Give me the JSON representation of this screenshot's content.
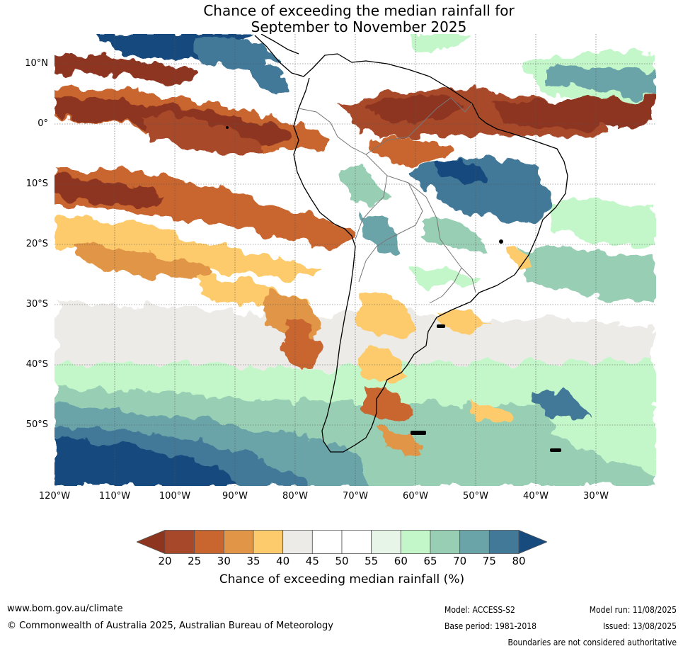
{
  "header": {
    "title_line1": "Chance of exceeding the median rainfall for",
    "title_line2": "September to November 2025"
  },
  "map": {
    "region": "South America",
    "lat_labels": [
      "10°N",
      "0°",
      "10°S",
      "20°S",
      "30°S",
      "40°S",
      "50°S"
    ],
    "lon_labels": [
      "120°W",
      "110°W",
      "100°W",
      "90°W",
      "80°W",
      "70°W",
      "60°W",
      "50°W",
      "40°W",
      "30°W"
    ]
  },
  "colorbar": {
    "title": "Chance of exceeding median rainfall (%)",
    "ticks": [
      "20",
      "25",
      "30",
      "35",
      "40",
      "45",
      "50",
      "55",
      "60",
      "65",
      "70",
      "75",
      "80"
    ],
    "colors": [
      "#8e3520",
      "#a8482a",
      "#c9652f",
      "#e09547",
      "#fdcb6c",
      "#ecebe8",
      "#ffffff",
      "#ffffff",
      "#e6f5e8",
      "#c3f7c9",
      "#98cfb4",
      "#6aa4a8",
      "#437998",
      "#174a7d"
    ]
  },
  "footer": {
    "website": "www.bom.gov.au/climate",
    "copyright": "© Commonwealth of Australia 2025, Australian Bureau of Meteorology",
    "model": "Model: ACCESS-S2",
    "base_period": "Base period: 1981-2018",
    "model_run": "Model run: 11/08/2025",
    "issued": "Issued: 13/08/2025",
    "disclaimer": "Boundaries are not considered authoritative"
  }
}
